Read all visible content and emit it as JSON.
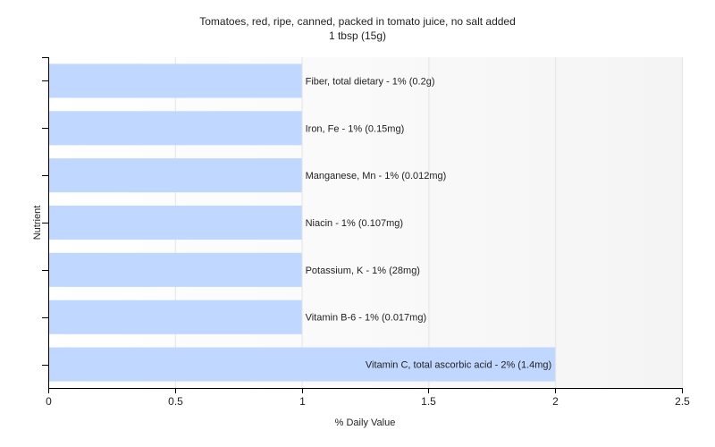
{
  "chart_data": {
    "type": "bar",
    "orientation": "horizontal",
    "title": "Tomatoes, red, ripe, canned, packed in tomato juice, no salt added",
    "subtitle": "1 tbsp (15g)",
    "xlabel": "% Daily Value",
    "ylabel": "Nutrient",
    "xlim": [
      0,
      2.5
    ],
    "xticks": [
      0,
      0.5,
      1,
      1.5,
      2,
      2.5
    ],
    "xtick_labels": [
      "0",
      "0.5",
      "1",
      "1.5",
      "2",
      "2.5"
    ],
    "grid": true,
    "categories": [
      "Fiber, total dietary",
      "Iron, Fe",
      "Manganese, Mn",
      "Niacin",
      "Potassium, K",
      "Vitamin B-6",
      "Vitamin C, total ascorbic acid"
    ],
    "values": [
      1,
      1,
      1,
      1,
      1,
      1,
      2
    ],
    "labels": [
      "Fiber, total dietary - 1% (0.2g)",
      "Iron, Fe - 1% (0.15mg)",
      "Manganese, Mn - 1% (0.012mg)",
      "Niacin - 1% (0.107mg)",
      "Potassium, K - 1% (28mg)",
      "Vitamin B-6 - 1% (0.017mg)",
      "Vitamin C, total ascorbic acid - 2% (1.4mg)"
    ],
    "bar_color": "#c0d8ff",
    "grid_color": "#e4e4e4",
    "plot_background": [
      "#ffffff",
      "#f4f4f4"
    ]
  }
}
